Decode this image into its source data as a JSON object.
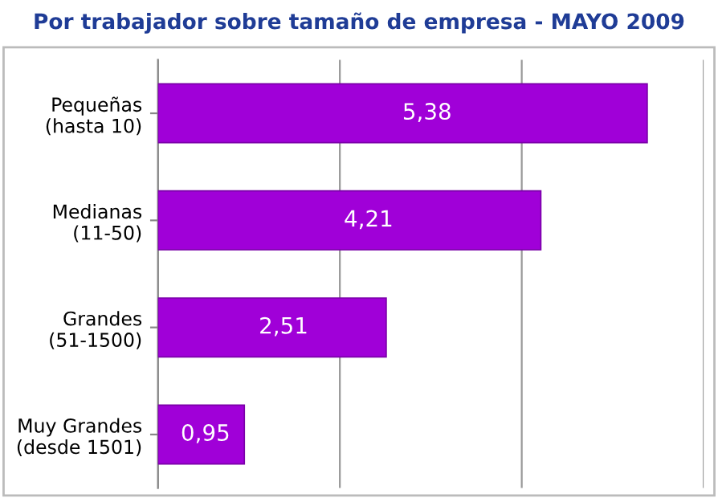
{
  "chart_data": {
    "type": "bar",
    "orientation": "horizontal",
    "title": "Por trabajador sobre tamaño de empresa - MAYO 2009",
    "categories": [
      "Pequeñas\n(hasta 10)",
      "Medianas\n(11-50)",
      "Grandes\n(51-1500)",
      "Muy Grandes\n(desde 1501)"
    ],
    "values": [
      5.38,
      4.21,
      2.51,
      0.95
    ],
    "value_labels": [
      "5,38",
      "4,21",
      "2,51",
      "0,95"
    ],
    "color": "#a000d8",
    "xlim": [
      0,
      6
    ],
    "xticks": [
      {
        "value": 0,
        "label": null
      },
      {
        "value": 2,
        "label": null
      },
      {
        "value": 4,
        "label": null
      },
      {
        "value": 6,
        "label": null
      }
    ],
    "tick_labels": "y",
    "grid": "x"
  }
}
